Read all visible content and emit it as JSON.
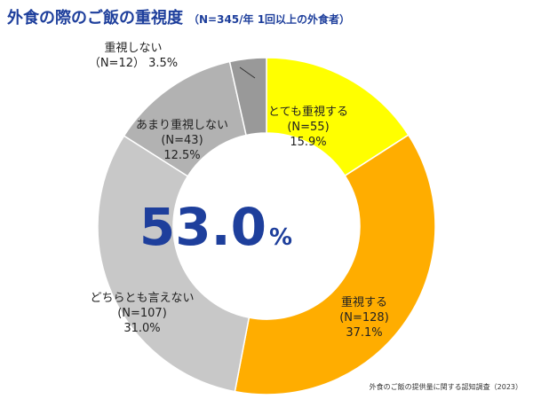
{
  "chart_data": {
    "type": "pie",
    "variant": "donut",
    "title": "外食の際のご飯の重視度",
    "subtitle": "（N=345/年 1回以上の外食者）",
    "center_value": "53.0",
    "center_unit": "%",
    "slices": [
      {
        "label": "とても重視する",
        "n": "(N=55)",
        "percent": 15.9,
        "percent_label": "15.9%",
        "color": "#ffff00"
      },
      {
        "label": "重視する",
        "n": "(N=128)",
        "percent": 37.1,
        "percent_label": "37.1%",
        "color": "#ffad00"
      },
      {
        "label": "どちらとも言えない",
        "n": "(N=107)",
        "percent": 31.0,
        "percent_label": "31.0%",
        "color": "#c8c8c8"
      },
      {
        "label": "あまり重視しない",
        "n": "(N=43)",
        "percent": 12.5,
        "percent_label": "12.5%",
        "color": "#b2b2b2"
      },
      {
        "label": "重視しない",
        "n": "（N=12）",
        "percent": 3.5,
        "percent_label": "3.5%",
        "color": "#999999"
      }
    ]
  },
  "source": "外食のご飯の提供量に関する認知調査（2023）",
  "colors": {
    "title": "#1e3f9c",
    "center": "#1e3f9c"
  }
}
